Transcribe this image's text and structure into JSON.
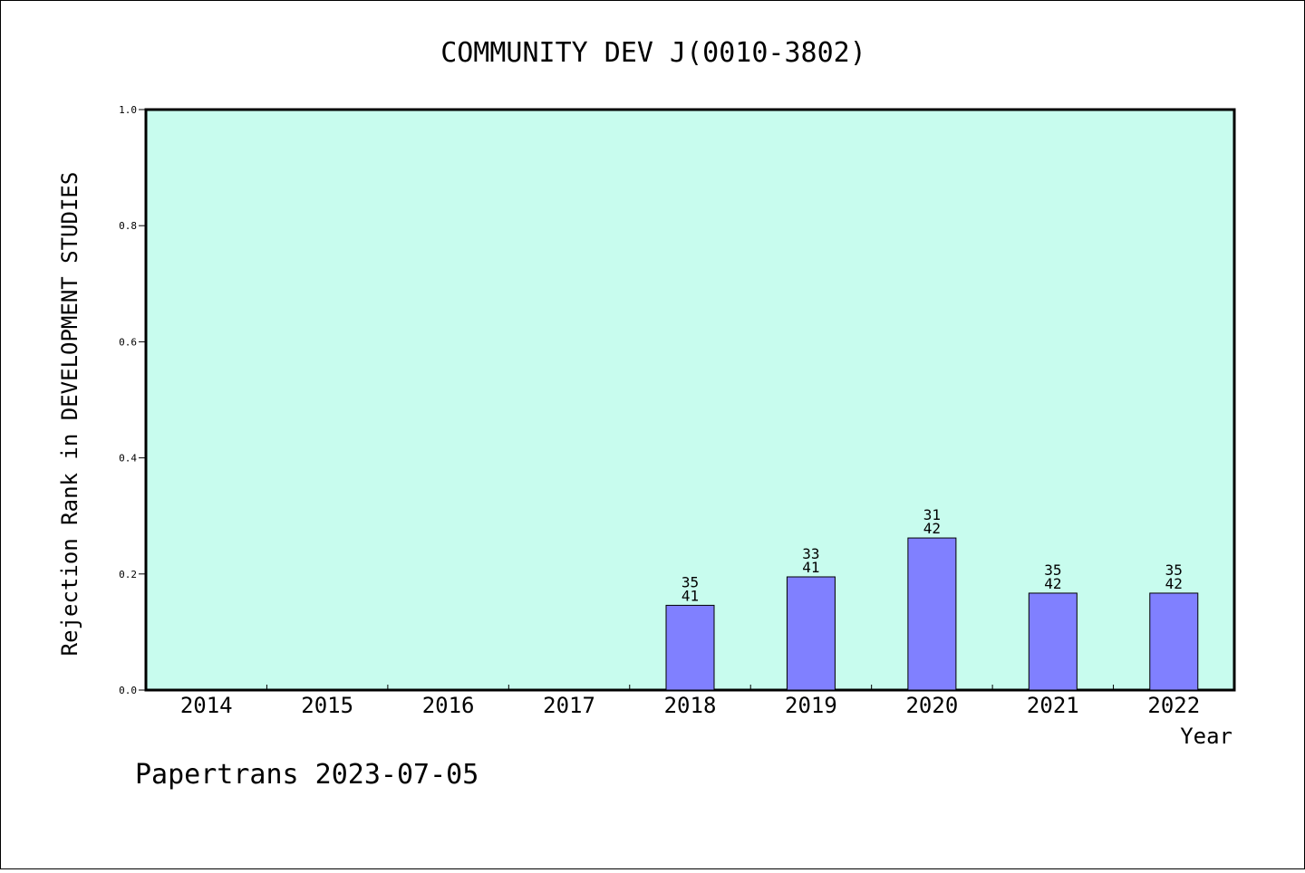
{
  "chart_data": {
    "type": "bar",
    "title": "COMMUNITY DEV J(0010-3802)",
    "ylabel": "Rejection Rank in DEVELOPMENT STUDIES",
    "xlabel": "Year",
    "footer": "Papertrans 2023-07-05",
    "ylim": [
      0,
      1.0
    ],
    "yticks": [
      "0.0",
      "0.2",
      "0.4",
      "0.6",
      "0.8",
      "1.0"
    ],
    "categories": [
      "2014",
      "2015",
      "2016",
      "2017",
      "2018",
      "2019",
      "2020",
      "2021",
      "2022"
    ],
    "values": [
      null,
      null,
      null,
      null,
      0.146,
      0.195,
      0.262,
      0.167,
      0.167
    ],
    "labels_top": [
      "",
      "",
      "",
      "",
      "35",
      "33",
      "31",
      "35",
      "35"
    ],
    "labels_bottom": [
      "",
      "",
      "",
      "",
      "41",
      "41",
      "42",
      "42",
      "42"
    ],
    "grid": false,
    "colors": {
      "plot_bg": "#c8fcee",
      "bar": "#8080ff"
    }
  }
}
